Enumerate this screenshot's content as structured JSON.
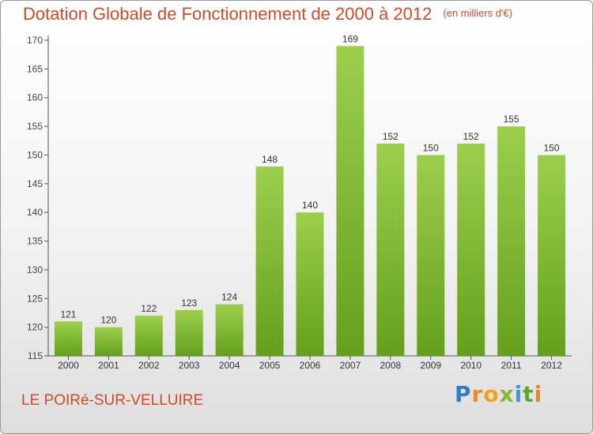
{
  "header": {
    "title": "Dotation Globale de Fonctionnement de 2000 à 2012",
    "unit": "(en milliers d'€)"
  },
  "footer": {
    "commune": "LE POIRé-SUR-VELLUIRE",
    "logo_letters": [
      "P",
      "r",
      "o",
      "x",
      "i",
      "t",
      "i"
    ]
  },
  "colors": {
    "title": "#d04a28",
    "bar_light": "#9ccf4c",
    "bar_dark": "#64a01c",
    "axis": "#555555"
  },
  "chart_data": {
    "type": "bar",
    "title": "Dotation Globale de Fonctionnement de 2000 à 2012",
    "unit": "(en milliers d'€)",
    "xlabel": "",
    "ylabel": "",
    "categories": [
      "2000",
      "2001",
      "2002",
      "2003",
      "2004",
      "2005",
      "2006",
      "2007",
      "2008",
      "2009",
      "2010",
      "2011",
      "2012"
    ],
    "values": [
      121,
      120,
      122,
      123,
      124,
      148,
      140,
      169,
      152,
      150,
      152,
      155,
      150
    ],
    "ylim": [
      115,
      170
    ],
    "yticks": [
      115,
      120,
      125,
      130,
      135,
      140,
      145,
      150,
      155,
      160,
      165,
      170
    ],
    "grid": false,
    "legend": "none"
  }
}
